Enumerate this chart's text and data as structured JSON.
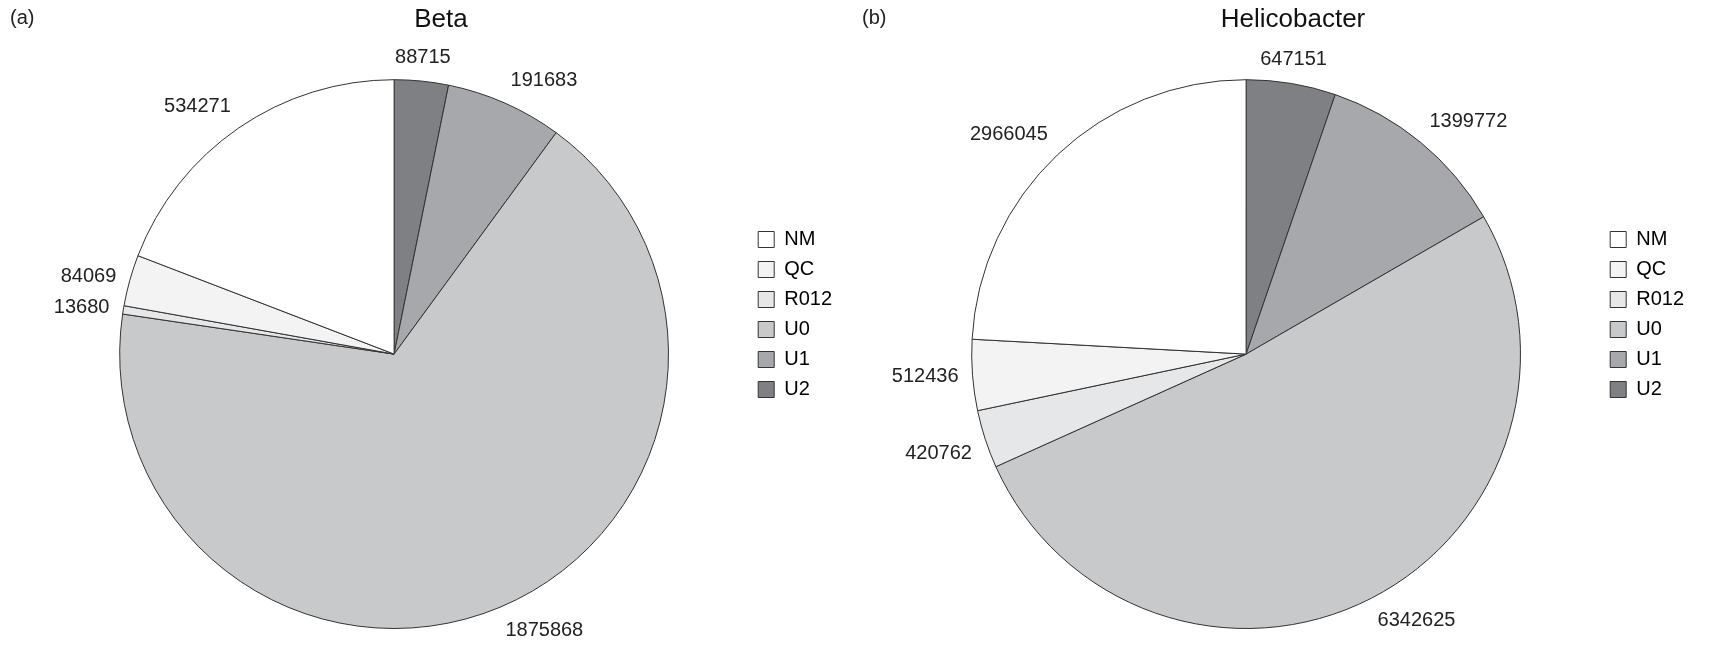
{
  "chart_data": [
    {
      "type": "pie",
      "title": "Beta",
      "annotations": [
        "(a)"
      ],
      "categories": [
        "NM",
        "QC",
        "R012",
        "U0",
        "U1",
        "U2"
      ],
      "values": [
        534271,
        84069,
        13680,
        1875868,
        191683,
        88715
      ],
      "colors": [
        "#ffffff",
        "#f3f3f3",
        "#e6e7e9",
        "#c8c9cb",
        "#a7a8ab",
        "#7f8083"
      ],
      "data_labels": true,
      "legend": "right"
    },
    {
      "type": "pie",
      "title": "Helicobacter",
      "annotations": [
        "(b)"
      ],
      "categories": [
        "NM",
        "QC",
        "R012",
        "U0",
        "U1",
        "U2"
      ],
      "values": [
        2966045,
        512436,
        420762,
        6342625,
        1399772,
        647151
      ],
      "colors": [
        "#ffffff",
        "#f3f3f3",
        "#e6e7e9",
        "#c8c9cb",
        "#a7a8ab",
        "#7f8083"
      ],
      "data_labels": true,
      "legend": "right"
    }
  ]
}
